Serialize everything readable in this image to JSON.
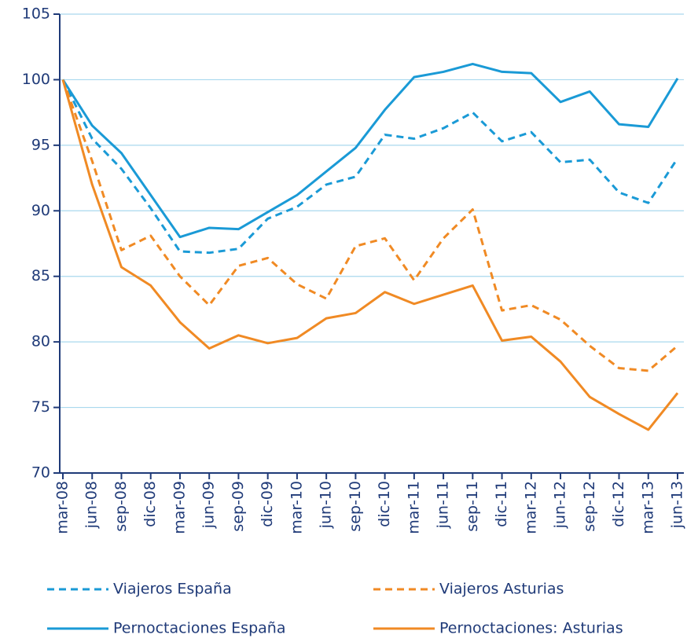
{
  "chart_data": {
    "type": "line",
    "categories": [
      "mar-08",
      "jun-08",
      "sep-08",
      "dic-08",
      "mar-09",
      "jun-09",
      "sep-09",
      "dic-09",
      "mar-10",
      "jun-10",
      "sep-10",
      "dic-10",
      "mar-11",
      "jun-11",
      "sep-11",
      "dic-11",
      "mar-12",
      "jun-12",
      "sep-12",
      "dic-12",
      "mar-13",
      "jun-13"
    ],
    "series": [
      {
        "name": "Viajeros España",
        "color": "#1a9ad6",
        "dashed": true,
        "values": [
          100,
          95.5,
          93.2,
          90.2,
          86.9,
          86.8,
          87.1,
          89.4,
          90.3,
          92,
          92.6,
          95.8,
          95.5,
          96.3,
          97.5,
          95.3,
          96,
          93.7,
          93.9,
          91.4,
          90.6,
          94
        ]
      },
      {
        "name": "Viajeros Asturias",
        "color": "#f08a24",
        "dashed": true,
        "values": [
          100,
          93.8,
          87,
          88.1,
          85,
          82.8,
          85.8,
          86.4,
          84.4,
          83.3,
          87.3,
          87.9,
          84.7,
          87.9,
          90.1,
          82.4,
          82.8,
          81.7,
          79.7,
          78,
          77.8,
          79.7
        ]
      },
      {
        "name": "Pernoctaciones España",
        "color": "#1a9ad6",
        "dashed": false,
        "values": [
          100,
          96.5,
          94.4,
          91.2,
          88,
          88.7,
          88.6,
          89.9,
          91.2,
          93,
          94.8,
          97.7,
          100.2,
          100.6,
          101.2,
          100.6,
          100.5,
          98.3,
          99.1,
          96.6,
          96.4,
          100.1
        ]
      },
      {
        "name": "Pernoctaciones: Asturias",
        "color": "#f08a24",
        "dashed": false,
        "values": [
          100,
          92,
          85.7,
          84.3,
          81.5,
          79.5,
          80.5,
          79.9,
          80.3,
          81.8,
          82.2,
          83.8,
          82.9,
          83.6,
          84.3,
          80.1,
          80.4,
          78.5,
          75.8,
          74.5,
          73.3,
          76.1
        ]
      }
    ],
    "ylim": [
      70,
      105
    ],
    "yticks": [
      70,
      75,
      80,
      85,
      90,
      95,
      100,
      105
    ],
    "grid": true,
    "legend": "bottom"
  }
}
